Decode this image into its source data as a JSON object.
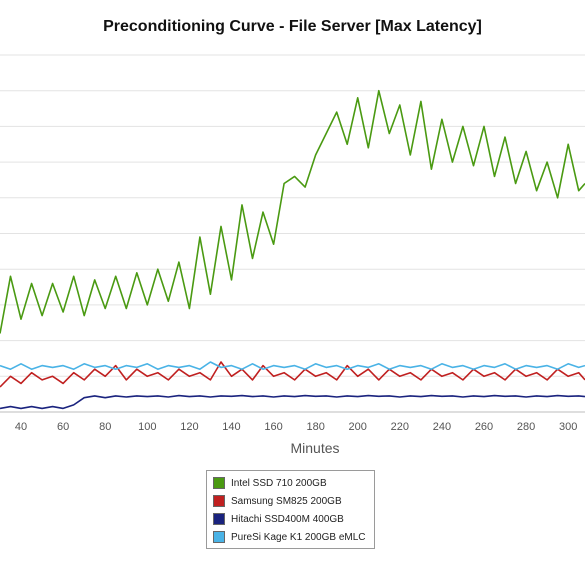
{
  "chart_data": {
    "type": "line",
    "title": "Preconditioning Curve - File Server [Max Latency]",
    "xlabel": "Minutes",
    "ylabel": "",
    "xlim": [
      30,
      308
    ],
    "ylim": [
      0,
      100
    ],
    "grid": true,
    "legend_position": "bottom-center",
    "x_ticks": [
      40,
      60,
      80,
      100,
      120,
      140,
      160,
      180,
      200,
      220,
      240,
      260,
      280,
      300
    ],
    "series": [
      {
        "name": "Intel SSD 710 200GB",
        "color": "#4a9a12",
        "x": [
          30,
          35,
          40,
          45,
          50,
          55,
          60,
          65,
          70,
          75,
          80,
          85,
          90,
          95,
          100,
          105,
          110,
          115,
          120,
          125,
          130,
          135,
          140,
          145,
          150,
          155,
          160,
          165,
          170,
          175,
          180,
          185,
          190,
          195,
          200,
          205,
          210,
          215,
          220,
          225,
          230,
          235,
          240,
          245,
          250,
          255,
          260,
          265,
          270,
          275,
          280,
          285,
          290,
          295,
          300,
          305,
          308
        ],
        "values": [
          22,
          38,
          26,
          36,
          27,
          36,
          28,
          38,
          27,
          37,
          29,
          38,
          29,
          39,
          30,
          40,
          31,
          42,
          29,
          49,
          33,
          52,
          37,
          58,
          43,
          56,
          47,
          64,
          66,
          63,
          72,
          78,
          84,
          75,
          88,
          74,
          90,
          78,
          86,
          72,
          87,
          68,
          82,
          70,
          80,
          69,
          80,
          66,
          77,
          64,
          73,
          62,
          70,
          60,
          75,
          62,
          64
        ]
      },
      {
        "name": "Samsung SM825 200GB",
        "color": "#c02020",
        "x": [
          30,
          35,
          40,
          45,
          50,
          55,
          60,
          65,
          70,
          75,
          80,
          85,
          90,
          95,
          100,
          105,
          110,
          115,
          120,
          125,
          130,
          135,
          140,
          145,
          150,
          155,
          160,
          165,
          170,
          175,
          180,
          185,
          190,
          195,
          200,
          205,
          210,
          215,
          220,
          225,
          230,
          235,
          240,
          245,
          250,
          255,
          260,
          265,
          270,
          275,
          280,
          285,
          290,
          295,
          300,
          305,
          308
        ],
        "values": [
          7,
          10,
          8,
          11,
          9,
          10,
          8,
          11,
          9,
          12,
          10,
          13,
          9,
          12,
          10,
          11,
          9,
          12,
          10,
          11,
          9,
          14,
          10,
          12,
          9,
          13,
          10,
          11,
          9,
          12,
          10,
          11,
          9,
          13,
          10,
          12,
          9,
          12,
          10,
          11,
          9,
          12,
          10,
          11,
          9,
          12,
          10,
          11,
          9,
          12,
          10,
          11,
          9,
          12,
          10,
          11,
          9
        ]
      },
      {
        "name": "Hitachi SSD400M 400GB",
        "color": "#1a237e",
        "x": [
          30,
          35,
          40,
          45,
          50,
          55,
          60,
          65,
          70,
          75,
          80,
          85,
          90,
          95,
          100,
          105,
          110,
          115,
          120,
          125,
          130,
          135,
          140,
          145,
          150,
          155,
          160,
          165,
          170,
          175,
          180,
          185,
          190,
          195,
          200,
          205,
          210,
          215,
          220,
          225,
          230,
          235,
          240,
          245,
          250,
          255,
          260,
          265,
          270,
          275,
          280,
          285,
          290,
          295,
          300,
          305,
          308
        ],
        "values": [
          1,
          1.5,
          1,
          1.5,
          1,
          1.5,
          1,
          2,
          4,
          4.5,
          4,
          4.5,
          4.2,
          4.5,
          4.3,
          4.5,
          4.2,
          4.6,
          4.3,
          4.5,
          4.2,
          4.5,
          4.4,
          4.6,
          4.3,
          4.5,
          4.2,
          4.5,
          4.3,
          4.6,
          4.4,
          4.5,
          4.2,
          4.5,
          4.3,
          4.6,
          4.4,
          4.5,
          4.2,
          4.5,
          4.3,
          4.6,
          4.4,
          4.5,
          4.2,
          4.5,
          4.3,
          4.6,
          4.4,
          4.5,
          4.2,
          4.5,
          4.3,
          4.6,
          4.4,
          4.5,
          4.3
        ]
      },
      {
        "name": "PureSi Kage K1 200GB eMLC",
        "color": "#4ab3e6",
        "x": [
          30,
          35,
          40,
          45,
          50,
          55,
          60,
          65,
          70,
          75,
          80,
          85,
          90,
          95,
          100,
          105,
          110,
          115,
          120,
          125,
          130,
          135,
          140,
          145,
          150,
          155,
          160,
          165,
          170,
          175,
          180,
          185,
          190,
          195,
          200,
          205,
          210,
          215,
          220,
          225,
          230,
          235,
          240,
          245,
          250,
          255,
          260,
          265,
          270,
          275,
          280,
          285,
          290,
          295,
          300,
          305,
          308
        ],
        "values": [
          13,
          12,
          13.5,
          12,
          13,
          12.5,
          13,
          12,
          13.5,
          12.5,
          13,
          12,
          13,
          12.5,
          13.5,
          12,
          13,
          12.5,
          13,
          12,
          14,
          12.5,
          13,
          12,
          13.5,
          12,
          13,
          12.5,
          13,
          12,
          13.5,
          12.5,
          13,
          12,
          13,
          12.5,
          13.5,
          12,
          13,
          12.5,
          13,
          12,
          13.5,
          12.5,
          13,
          12,
          13,
          12.5,
          13.5,
          12,
          13,
          12.5,
          13,
          12,
          13.5,
          12.5,
          13
        ]
      }
    ]
  }
}
